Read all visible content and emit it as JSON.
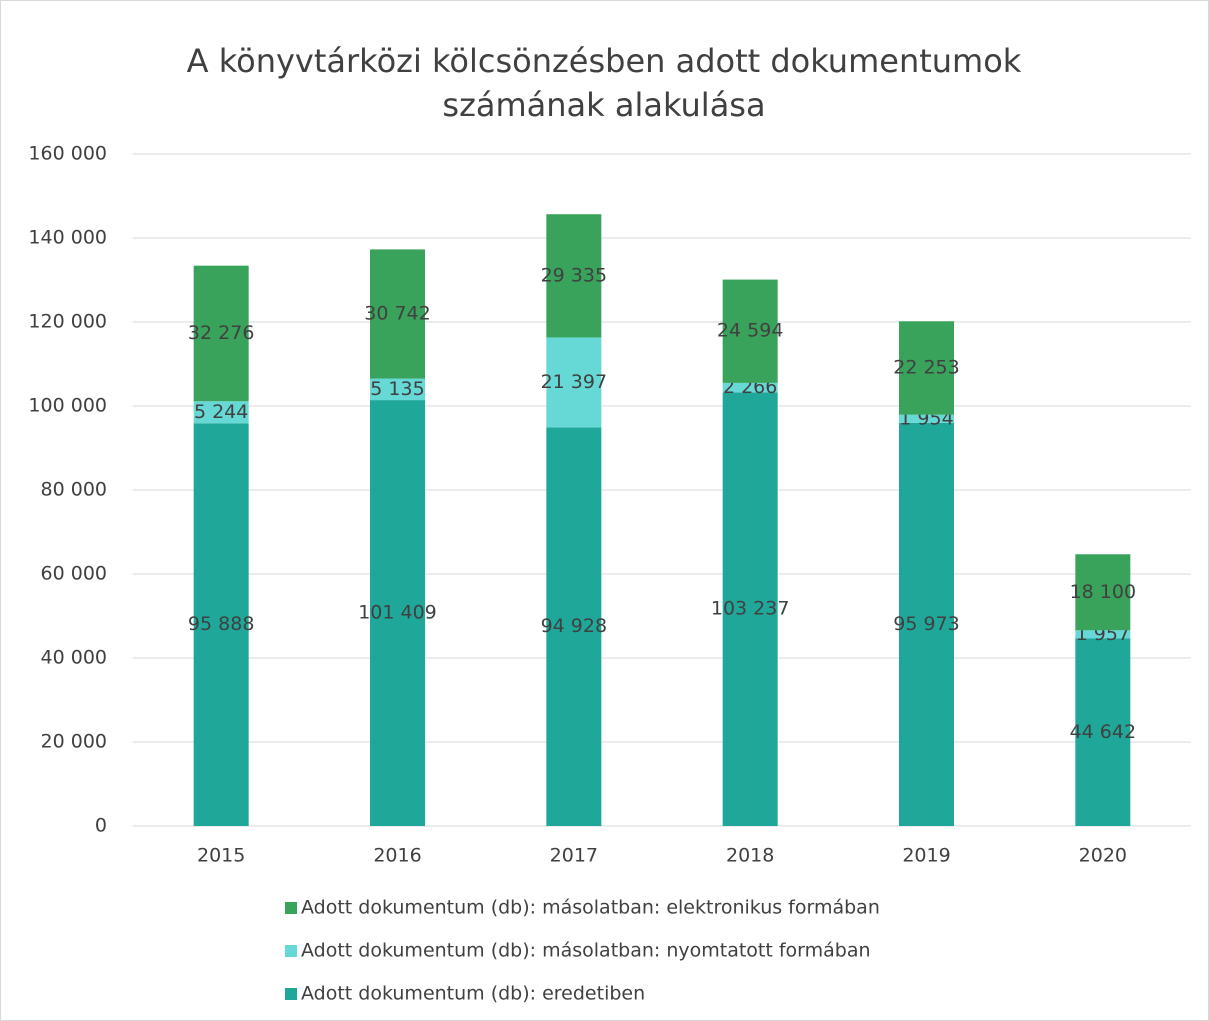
{
  "chart_data": {
    "type": "stacked_bar",
    "title": "A könyvtárközi kölcsönzésben adott dokumentumok számának alakulása",
    "categories": [
      "2015",
      "2016",
      "2017",
      "2018",
      "2019",
      "2020"
    ],
    "series": [
      {
        "name": "Adott dokumentum (db): eredetiben",
        "color": "#1fa89a",
        "values": [
          95888,
          101409,
          94928,
          103237,
          95973,
          44642
        ],
        "value_labels": [
          "95 888",
          "101 409",
          "94 928",
          "103 237",
          "95 973",
          "44 642"
        ]
      },
      {
        "name": "Adott dokumentum (db): másolatban: nyomtatott formában",
        "color": "#66d9d6",
        "values": [
          5244,
          5135,
          21397,
          2266,
          1954,
          1957
        ],
        "value_labels": [
          "5 244",
          "5 135",
          "21 397",
          "2 266",
          "1 954",
          "1 957"
        ]
      },
      {
        "name": "Adott dokumentum (db): másolatban: elektronikus formában",
        "color": "#3aa35b",
        "values": [
          32276,
          30742,
          29335,
          24594,
          22253,
          18100
        ],
        "value_labels": [
          "32 276",
          "30 742",
          "29 335",
          "24 594",
          "22 253",
          "18 100"
        ]
      }
    ],
    "ylim": [
      0,
      160000
    ],
    "yticks": [
      0,
      {
        "value": 20000,
        "label": "20 000"
      },
      {
        "value": 40000,
        "label": "40 000"
      },
      {
        "value": 60000,
        "label": "60 000"
      },
      {
        "value": 80000,
        "label": "80 000"
      },
      {
        "value": 100000,
        "label": "100 000"
      },
      {
        "value": 120000,
        "label": "120 000"
      },
      {
        "value": 140000,
        "label": "140 000"
      },
      {
        "value": 160000,
        "label": "160 000"
      }
    ],
    "grid": true,
    "legend": "bottom"
  }
}
